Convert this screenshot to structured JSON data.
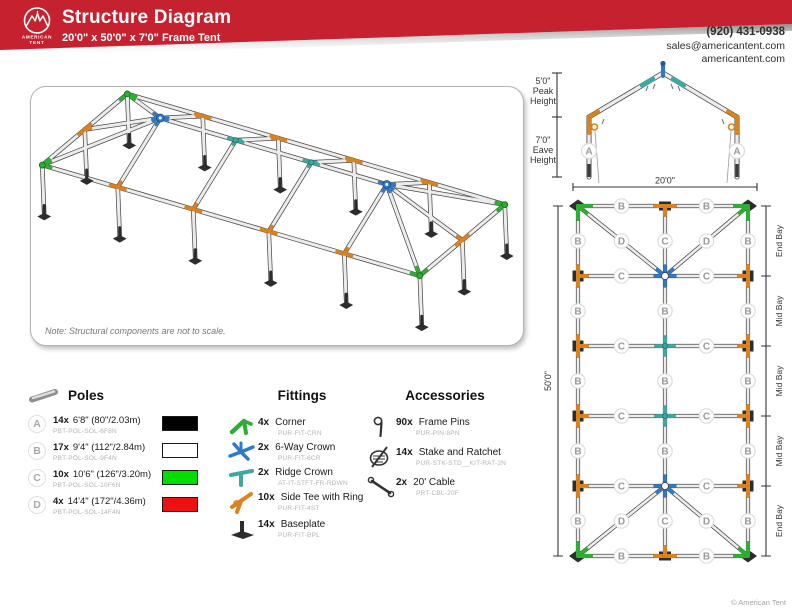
{
  "header": {
    "title": "Structure Diagram",
    "subtitle": "20'0\" x 50'0\" x 7'0\" Frame Tent",
    "logo_line1": "AMERICAN",
    "logo_line2": "TENT"
  },
  "contact": {
    "phone": "(920) 431-0938",
    "email": "sales@americantent.com",
    "website": "americantent.com"
  },
  "iso_view": {
    "note": "Note: Structural components are not to scale."
  },
  "elevation": {
    "peak_dim": "5'0\"",
    "peak_line1": "Peak",
    "peak_line2": "Height",
    "eave_dim": "7'0\"",
    "eave_line1": "Eave",
    "eave_line2": "Height",
    "width_dim": "20'0\"",
    "leg_label": "A"
  },
  "plan": {
    "length_dim": "50'0\"",
    "bay_labels": [
      "End Bay",
      "Mid Bay",
      "Mid Bay",
      "Mid Bay",
      "End Bay"
    ],
    "letters": {
      "b": "B",
      "c": "C",
      "d": "D"
    }
  },
  "legend": {
    "poles": {
      "heading": "Poles",
      "items": [
        {
          "letter": "A",
          "qty": "14x",
          "size": "6'8\" (80\"/2.03m)",
          "sku": "PBT-POL-SOL-6F8N",
          "swatch": "#000000"
        },
        {
          "letter": "B",
          "qty": "17x",
          "size": "9'4\" (112\"/2.84m)",
          "sku": "PBT-POL-SOL-9F4N",
          "swatch": "#ffffff"
        },
        {
          "letter": "C",
          "qty": "10x",
          "size": "10'6\" (126\"/3.20m)",
          "sku": "PBT-POL-SOL-10F6N",
          "swatch": "#00dd00"
        },
        {
          "letter": "D",
          "qty": "4x",
          "size": "14'4\" (172\"/4.36m)",
          "sku": "PBT-POL-SOL-14F4N",
          "swatch": "#ee1111"
        }
      ]
    },
    "fittings": {
      "heading": "Fittings",
      "items": [
        {
          "qty": "4x",
          "label": "Corner",
          "sku": "PUR-FIT-CRN"
        },
        {
          "qty": "2x",
          "label": "6-Way Crown",
          "sku": "PUR-FIT-6CR"
        },
        {
          "qty": "2x",
          "label": "Ridge Crown",
          "sku": "AT-IT-STFT-FR-RDWN"
        },
        {
          "qty": "10x",
          "label": "Side Tee with Ring",
          "sku": "PUR-FIT-4ST"
        },
        {
          "qty": "14x",
          "label": "Baseplate",
          "sku": "PUR-FIT-BPL"
        }
      ]
    },
    "accessories": {
      "heading": "Accessories",
      "items": [
        {
          "qty": "90x",
          "label": "Frame Pins",
          "sku": "PUR-PIN-8PN"
        },
        {
          "qty": "14x",
          "label": "Stake and Ratchet",
          "sku": "PUR-STK-STD__KIT-RAT-2N"
        },
        {
          "qty": "2x",
          "label": "20' Cable",
          "sku": "PRT-CBL-20F"
        }
      ]
    }
  },
  "colors": {
    "brand_red": "#c5212f",
    "corner_green": "#2ead33",
    "crown_blue": "#2e79c9",
    "ridge_teal": "#3fa8a0",
    "tee_orange": "#d9821f",
    "baseplate_dark": "#2d2d2d",
    "pole_swatch_black": "#000000",
    "pole_swatch_white": "#ffffff",
    "pole_swatch_green": "#00dd00",
    "pole_swatch_red": "#ee1111"
  },
  "footer": {
    "copyright": "© American Tent"
  }
}
